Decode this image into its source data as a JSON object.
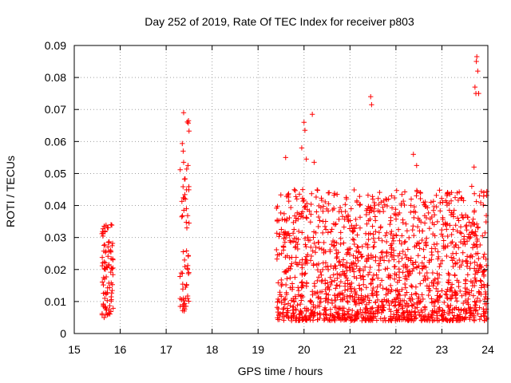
{
  "chart_data": {
    "type": "scatter",
    "title": "Day 252 of 2019, Rate Of TEC Index for receiver p803",
    "xlabel": "GPS time / hours",
    "ylabel": "ROTI / TECUs",
    "xlim": [
      15,
      24
    ],
    "ylim": [
      0,
      0.09
    ],
    "xticks": [
      15,
      16,
      17,
      18,
      19,
      20,
      21,
      22,
      23,
      24
    ],
    "yticks": [
      0,
      0.01,
      0.02,
      0.03,
      0.04,
      0.05,
      0.06,
      0.07,
      0.08,
      0.09
    ],
    "xtick_labels": [
      "15",
      "16",
      "17",
      "18",
      "19",
      "20",
      "21",
      "22",
      "23",
      "24"
    ],
    "ytick_labels": [
      "0",
      "0.01",
      "0.02",
      "0.03",
      "0.04",
      "0.05",
      "0.06",
      "0.07",
      "0.08",
      "0.09"
    ],
    "grid": true,
    "marker": "+",
    "series": [
      {
        "name": "ROTI",
        "color": "#ff0000",
        "marker": "+",
        "point_density": "dense",
        "clusters": [
          {
            "x_range": [
              15.6,
              15.85
            ],
            "y_range": [
              0.005,
              0.034
            ],
            "count": 90
          },
          {
            "x_range": [
              17.3,
              17.5
            ],
            "y_range": [
              0.007,
              0.069
            ],
            "count": 60
          },
          {
            "x_range": [
              19.4,
              24.0
            ],
            "y_range": [
              0.004,
              0.045
            ],
            "count": 1600
          }
        ],
        "highlighted_values": [
          {
            "x": 15.65,
            "y": 0.005
          },
          {
            "x": 15.8,
            "y": 0.034
          },
          {
            "x": 17.38,
            "y": 0.069
          },
          {
            "x": 17.37,
            "y": 0.057
          },
          {
            "x": 17.38,
            "y": 0.0535
          },
          {
            "x": 17.42,
            "y": 0.042
          },
          {
            "x": 17.44,
            "y": 0.039
          },
          {
            "x": 17.45,
            "y": 0.033
          },
          {
            "x": 19.6,
            "y": 0.055
          },
          {
            "x": 19.95,
            "y": 0.058
          },
          {
            "x": 20.0,
            "y": 0.066
          },
          {
            "x": 20.02,
            "y": 0.0635
          },
          {
            "x": 20.05,
            "y": 0.0545
          },
          {
            "x": 20.18,
            "y": 0.0685
          },
          {
            "x": 20.22,
            "y": 0.0535
          },
          {
            "x": 21.45,
            "y": 0.074
          },
          {
            "x": 21.47,
            "y": 0.0715
          },
          {
            "x": 22.38,
            "y": 0.056
          },
          {
            "x": 22.45,
            "y": 0.0525
          },
          {
            "x": 23.65,
            "y": 0.046
          },
          {
            "x": 23.7,
            "y": 0.052
          },
          {
            "x": 23.72,
            "y": 0.077
          },
          {
            "x": 23.74,
            "y": 0.075
          },
          {
            "x": 23.75,
            "y": 0.085
          },
          {
            "x": 23.76,
            "y": 0.0865
          },
          {
            "x": 23.78,
            "y": 0.082
          },
          {
            "x": 23.8,
            "y": 0.075
          }
        ]
      }
    ]
  }
}
